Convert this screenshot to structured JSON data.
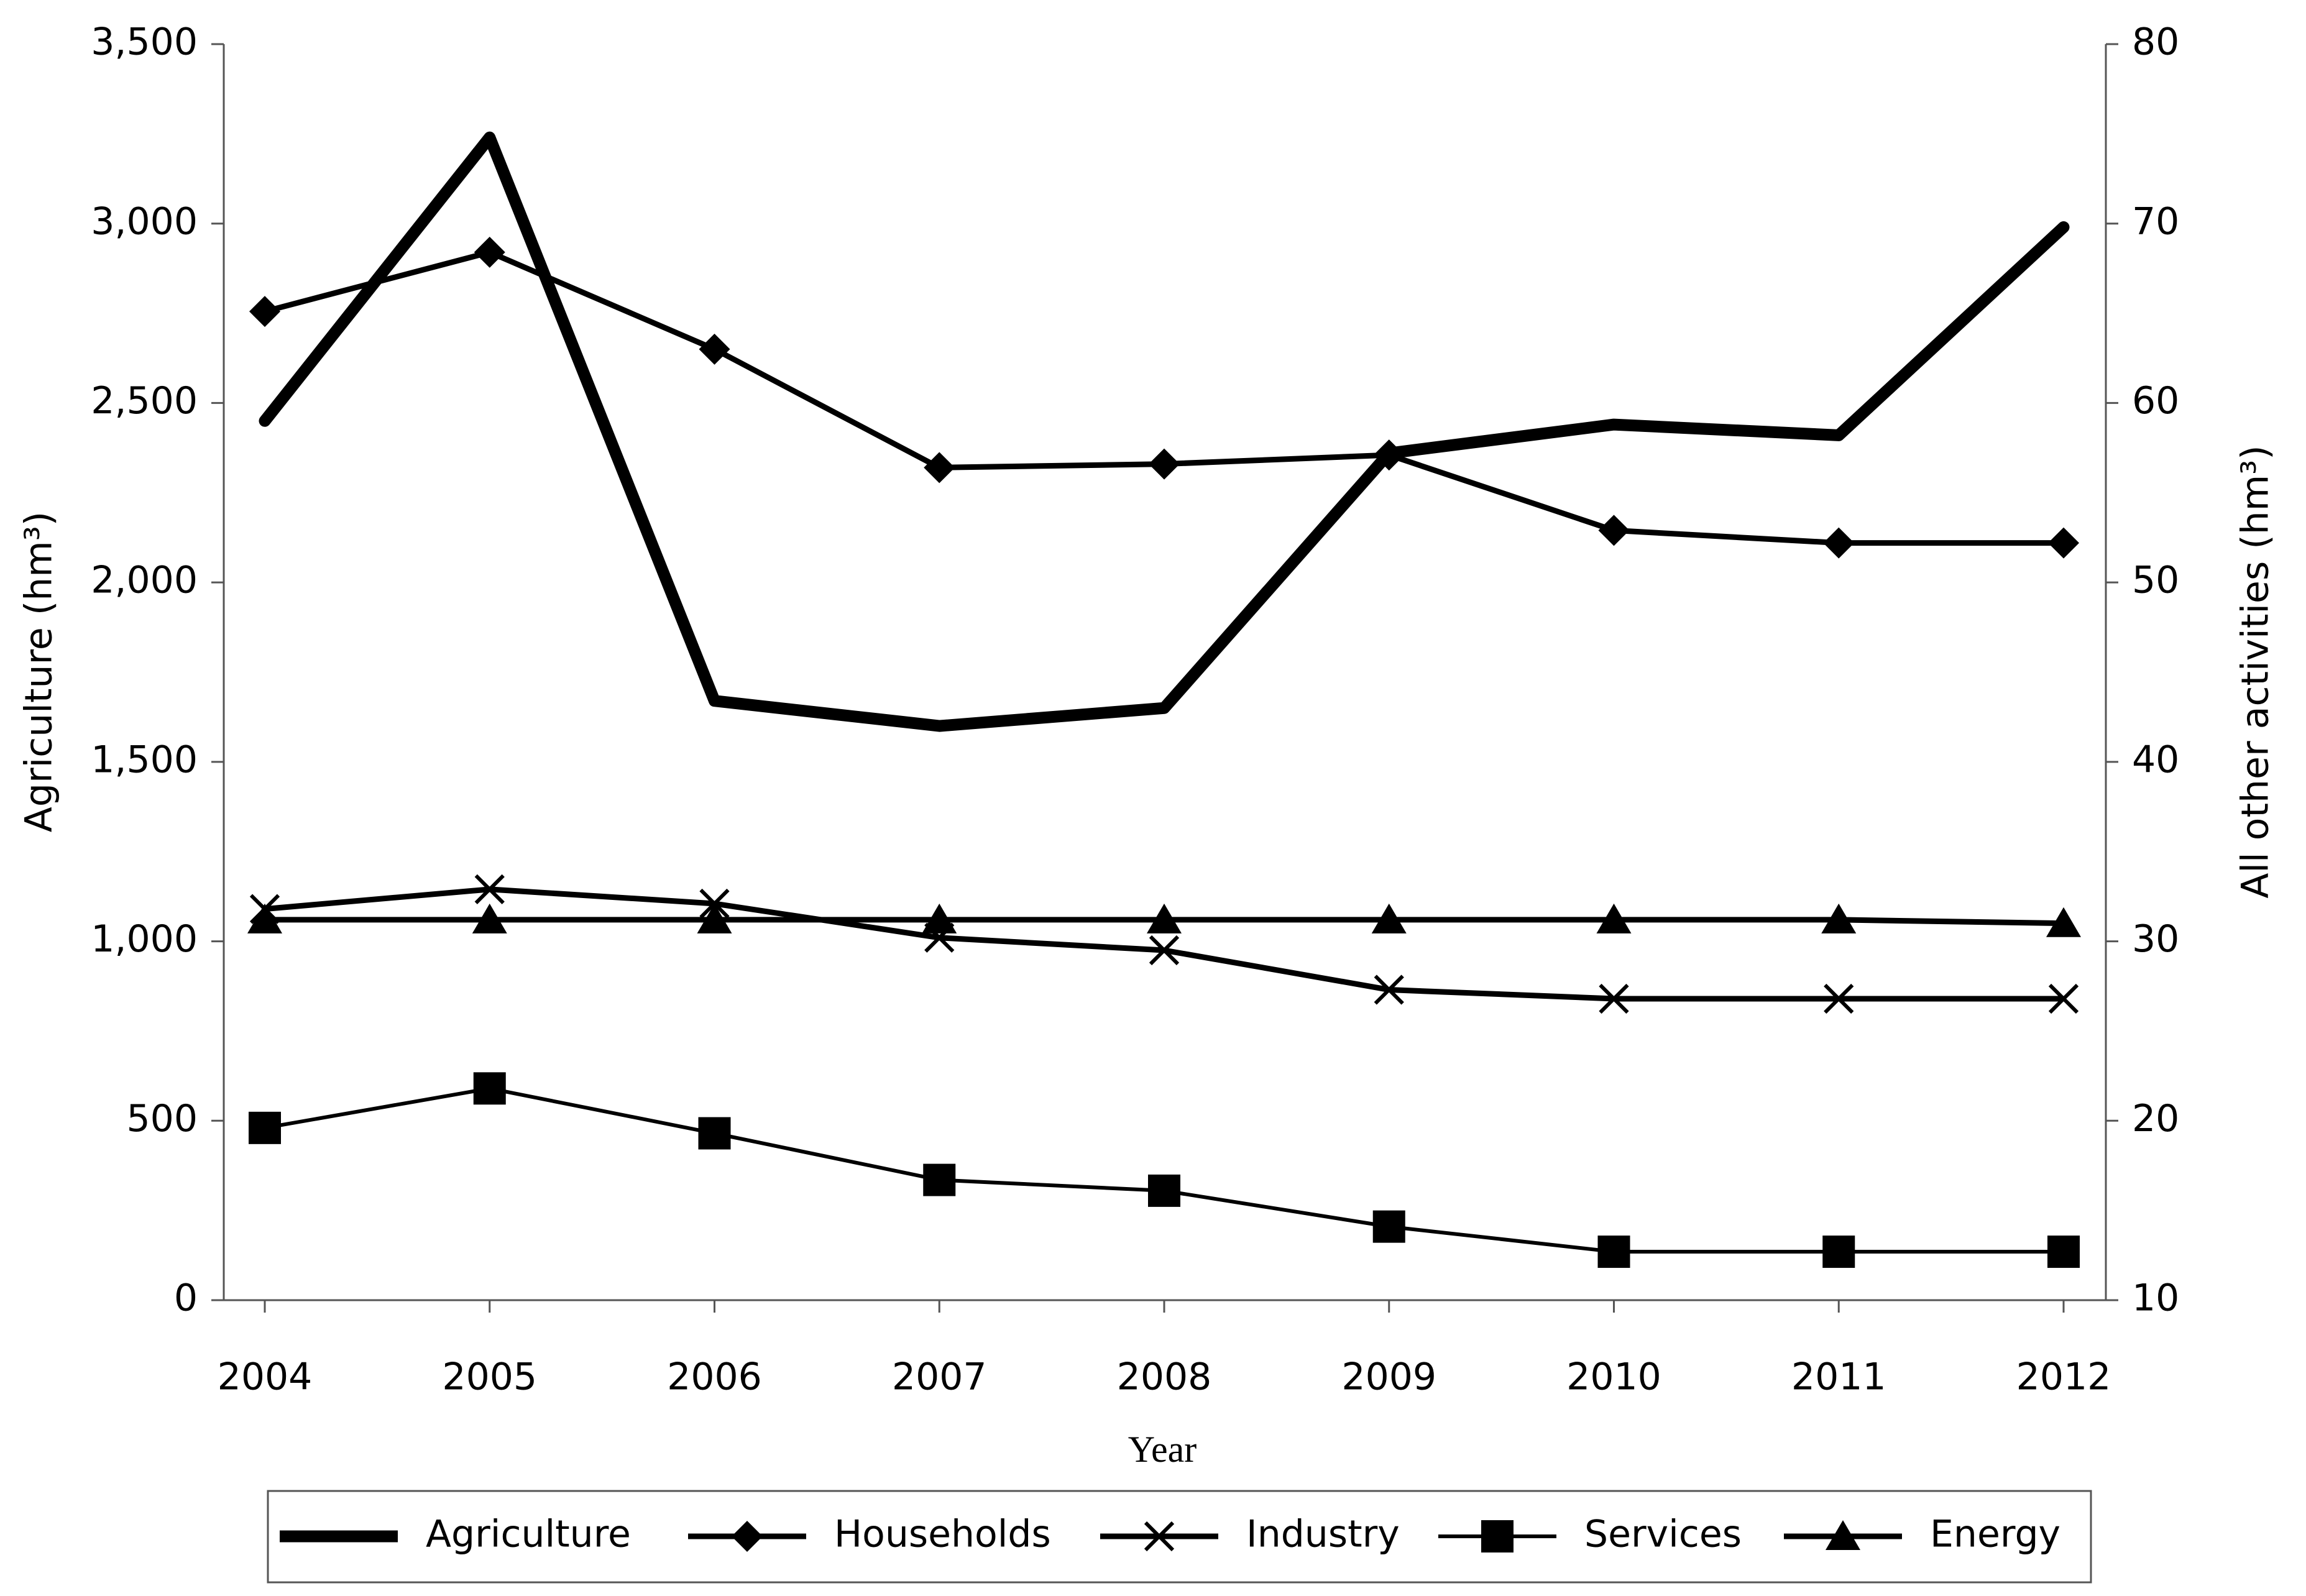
{
  "chart_data": {
    "type": "line",
    "x_label": "Year",
    "y_label": "Agriculture (hm³)",
    "y2_label": "All other activities (hm³)",
    "categories": [
      "2004",
      "2005",
      "2006",
      "2007",
      "2008",
      "2009",
      "2010",
      "2011",
      "2012"
    ],
    "ylim": [
      0,
      3500
    ],
    "yticks": [
      0,
      500,
      {
        "value": 1000,
        "label": "1,000"
      },
      {
        "value": 1500,
        "label": "1,500"
      },
      {
        "value": 2000,
        "label": "2,000"
      },
      {
        "value": 2500,
        "label": "2,500"
      },
      {
        "value": 3000,
        "label": "3,000"
      },
      {
        "value": 3500,
        "label": "3,500"
      }
    ],
    "y2lim": [
      10,
      80
    ],
    "y2ticks": [
      10,
      20,
      30,
      40,
      50,
      60,
      70,
      80
    ],
    "series": [
      {
        "name": "Agriculture",
        "color": "#000000",
        "marker": "none",
        "values": [
          2450,
          3240,
          1670,
          1600,
          1650,
          2360,
          2440,
          2410,
          2990
        ]
      },
      {
        "name": "Households",
        "color": "#000000",
        "marker": "diamond",
        "axis": "y2",
        "values": [
          65.1,
          68.4,
          63.0,
          56.4,
          56.6,
          57.1,
          52.9,
          52.2,
          52.2
        ]
      },
      {
        "name": "Industry",
        "color": "#000000",
        "marker": "x",
        "axis": "y2",
        "values": [
          31.8,
          32.9,
          32.1,
          30.2,
          29.5,
          27.3,
          26.8,
          26.8,
          26.8
        ]
      },
      {
        "name": "Services",
        "color": "#000000",
        "marker": "square",
        "axis": "y2",
        "values": [
          19.6,
          21.8,
          19.3,
          16.7,
          16.1,
          14.1,
          12.7,
          12.7,
          12.7
        ]
      },
      {
        "name": "Energy",
        "color": "#000000",
        "marker": "triangle",
        "axis": "y2",
        "values": [
          31.2,
          31.2,
          31.2,
          31.2,
          31.2,
          31.2,
          31.2,
          31.2,
          31.0
        ]
      }
    ],
    "legend": "bottom"
  }
}
